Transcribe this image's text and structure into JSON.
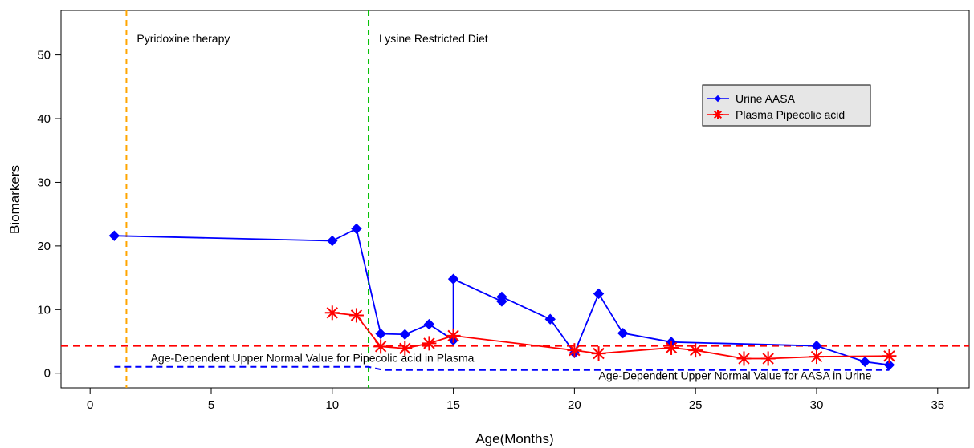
{
  "chart_data": {
    "type": "line",
    "title": "",
    "xlabel": "Age(Months)",
    "ylabel": "Biomarkers",
    "xlim": [
      -1.2,
      36.3
    ],
    "ylim": [
      -2.3,
      57
    ],
    "x_ticks": [
      0,
      5,
      10,
      15,
      20,
      25,
      30,
      35
    ],
    "y_ticks": [
      0,
      10,
      20,
      30,
      40,
      50
    ],
    "grid": false,
    "legend_position": "upper-right",
    "series": [
      {
        "name": "Urine AASA",
        "color": "#0000ff",
        "marker": "diamond",
        "points": [
          [
            1,
            21.6
          ],
          [
            10,
            20.8
          ],
          [
            11,
            22.7
          ],
          [
            12,
            6.2
          ],
          [
            13,
            6.1
          ],
          [
            14,
            7.7
          ],
          [
            15,
            5.2
          ],
          [
            15,
            14.8
          ],
          [
            17,
            11.3
          ],
          [
            17,
            12.0
          ],
          [
            19,
            8.5
          ],
          [
            20,
            3.2
          ],
          [
            21,
            12.5
          ],
          [
            22,
            6.3
          ],
          [
            24,
            4.9
          ],
          [
            30,
            4.3
          ],
          [
            32,
            1.8
          ],
          [
            33,
            1.3
          ]
        ]
      },
      {
        "name": "Plasma Pipecolic acid",
        "color": "#ff0000",
        "marker": "asterisk",
        "points": [
          [
            10,
            9.5
          ],
          [
            11,
            9.1
          ],
          [
            12,
            4.2
          ],
          [
            13,
            3.9
          ],
          [
            14,
            4.7
          ],
          [
            15,
            5.9
          ],
          [
            20,
            3.6
          ],
          [
            21,
            3.1
          ],
          [
            24,
            4.0
          ],
          [
            25,
            3.6
          ],
          [
            27,
            2.3
          ],
          [
            28,
            2.3
          ],
          [
            30,
            2.6
          ],
          [
            33,
            2.7
          ]
        ]
      }
    ],
    "vertical_lines": [
      {
        "x": 1.5,
        "color": "#ffa500",
        "label": "Pyridoxine therapy"
      },
      {
        "x": 11.5,
        "color": "#00c000",
        "label": "Lysine Restricted Diet"
      }
    ],
    "reference_lines": [
      {
        "name": "pipecolic-reference",
        "color": "#ff0000",
        "y_start": 4.3,
        "y_end": 4.3,
        "x_start": -1.2,
        "x_end": 36.3
      },
      {
        "name": "aasa-reference",
        "color": "#0000ff",
        "x_start": 1,
        "x_end": 33,
        "break_x": 11.5,
        "y_before": 1.0,
        "y_after": 0.5
      }
    ],
    "annotations": [
      {
        "name": "annotation-pipecolic-upper-normal",
        "text": "Age-Dependent Upper Normal Value for Pipecolic acid in Plasma",
        "x": 2.5,
        "y": 1.8
      },
      {
        "name": "annotation-aasa-upper-normal",
        "text": "Age-Dependent Upper Normal Value for AASA in Urine",
        "x": 21,
        "y": -1.0
      }
    ]
  }
}
